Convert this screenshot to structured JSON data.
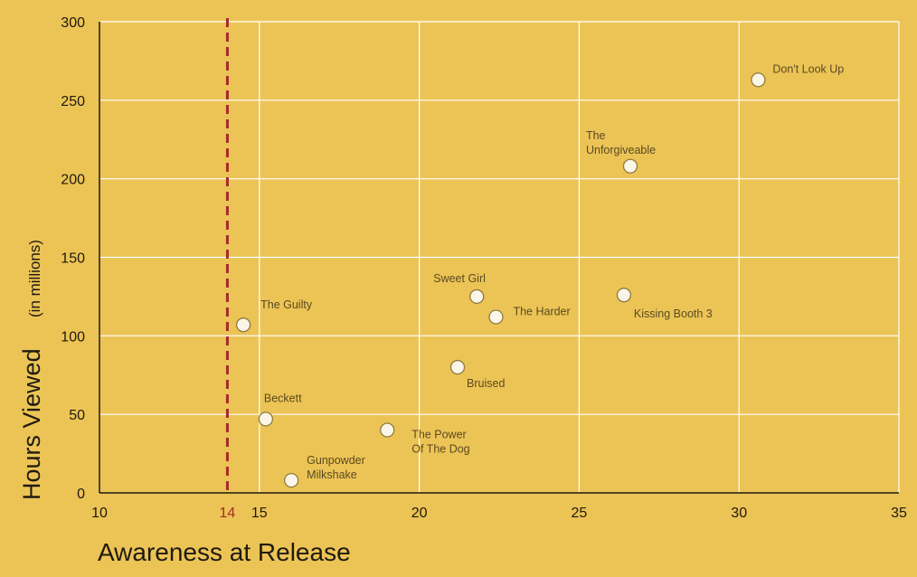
{
  "chart_data": {
    "type": "scatter",
    "xlabel": "Awareness at Release",
    "ylabel": "Hours Viewed",
    "ylabel_sub": "(in millions)",
    "xlim": [
      10,
      35
    ],
    "ylim": [
      0,
      300
    ],
    "x_ticks": [
      "10",
      "15",
      "20",
      "25",
      "30",
      "35"
    ],
    "y_ticks": [
      "0",
      "50",
      "100",
      "150",
      "200",
      "250",
      "300"
    ],
    "grid": true,
    "reference_line": {
      "x": 14,
      "label": "14",
      "style": "dashed",
      "color": "#A52A2A"
    },
    "colors": {
      "background": "#ECC456",
      "grid": "#FFFFFF",
      "point_fill": "#FBF6E8",
      "point_stroke": "#8F7A3E",
      "axis": "#1f1a10",
      "label": "#5a4a1f"
    },
    "points": [
      {
        "label": "Don't Look Up",
        "x": 30.6,
        "y": 263
      },
      {
        "label": "The Unforgiveable",
        "x": 26.6,
        "y": 208
      },
      {
        "label": "Kissing Booth 3",
        "x": 26.4,
        "y": 126
      },
      {
        "label": "Sweet Girl",
        "x": 21.8,
        "y": 125
      },
      {
        "label": "The Harder",
        "x": 22.4,
        "y": 112
      },
      {
        "label": "The Guilty",
        "x": 14.5,
        "y": 107
      },
      {
        "label": "Bruised",
        "x": 21.2,
        "y": 80
      },
      {
        "label": "Beckett",
        "x": 15.2,
        "y": 47
      },
      {
        "label": "The Power Of The Dog",
        "x": 19.0,
        "y": 40
      },
      {
        "label": "Gunpowder Milkshake",
        "x": 16.0,
        "y": 8
      }
    ]
  }
}
